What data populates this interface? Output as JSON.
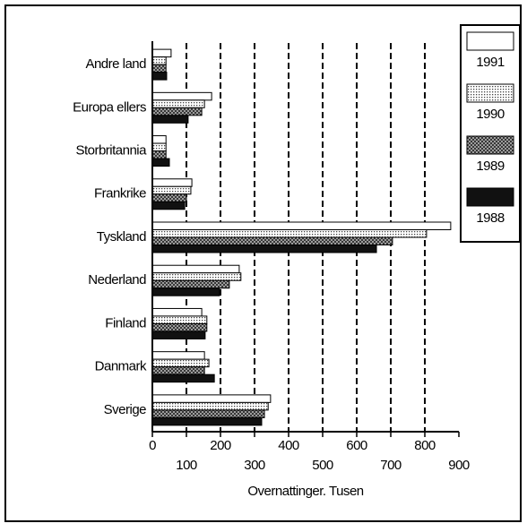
{
  "chart_data": {
    "type": "hbar",
    "x_label": "Overnattinger. Tusen",
    "categories": [
      "Andre land",
      "Europa ellers",
      "Storbritannia",
      "Frankrike",
      "Tyskland",
      "Nederland",
      "Finland",
      "Danmark",
      "Sverige"
    ],
    "series": [
      {
        "name": "1991",
        "color": "#ffffff",
        "pattern": "none",
        "values": [
          55,
          174,
          40,
          116,
          876,
          255,
          145,
          153,
          347
        ]
      },
      {
        "name": "1990",
        "color": "#cccccc",
        "pattern": "dots",
        "values": [
          40,
          153,
          40,
          113,
          805,
          260,
          160,
          166,
          340
        ]
      },
      {
        "name": "1989",
        "color": "#999999",
        "pattern": "crosshatch",
        "values": [
          40,
          145,
          40,
          100,
          705,
          226,
          160,
          153,
          329
        ]
      },
      {
        "name": "1988",
        "color": "#111111",
        "pattern": "solid",
        "values": [
          42,
          105,
          50,
          95,
          658,
          197,
          155,
          182,
          321
        ]
      }
    ],
    "xlim": [
      0,
      900
    ],
    "xticks": [
      0,
      100,
      200,
      300,
      400,
      500,
      600,
      700,
      800,
      900
    ],
    "grid": true,
    "legend": "right"
  }
}
